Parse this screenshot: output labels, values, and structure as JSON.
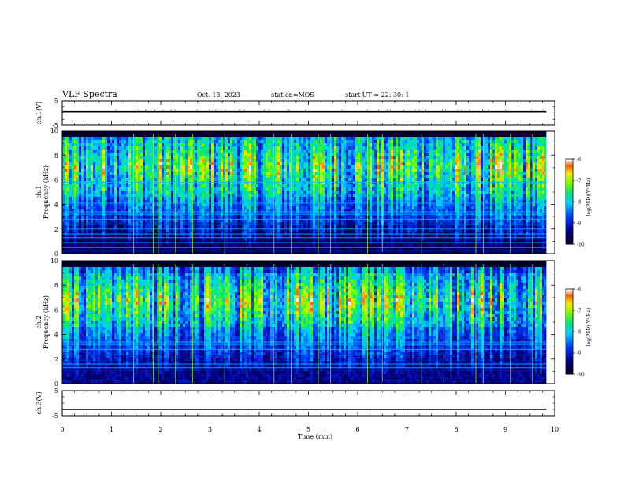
{
  "header": {
    "title": "VLF Spectra",
    "date": "Oct. 13, 2023",
    "station": "station=MOS",
    "start": "start  UT =   22: 30: 1"
  },
  "chart_data": [
    {
      "type": "line",
      "ylabel": "ch.1(V)",
      "ylim": [
        -5,
        5
      ],
      "yticks": [
        -5,
        5
      ],
      "xlim": [
        0,
        10
      ],
      "series": [
        {
          "x": [
            0,
            9.83
          ],
          "values": [
            0.6,
            0.6
          ]
        }
      ]
    },
    {
      "type": "heatmap",
      "ylabel": "ch.1\nFrequency (kHz)",
      "ylim": [
        0,
        10
      ],
      "yticks": [
        0,
        2,
        4,
        6,
        8,
        10
      ],
      "xlim": [
        0,
        10
      ],
      "data_end_min": 9.83,
      "colorbar": {
        "label": "log(PSD)(V²/Hz)",
        "range": [
          -10,
          -6
        ],
        "ticks": [
          -6,
          -7,
          -8,
          -9,
          -10
        ]
      },
      "main_band_khz": [
        4.5,
        9.5
      ],
      "background_level": -9.6,
      "line_freqs_khz": [
        0.5,
        0.9,
        1.3,
        1.6,
        2.0,
        2.4,
        2.8,
        3.2,
        3.4,
        4.1,
        5.8
      ]
    },
    {
      "type": "heatmap",
      "ylabel": "ch.2\nFrequency (kHz)",
      "ylim": [
        0,
        10
      ],
      "yticks": [
        0,
        2,
        4,
        6,
        8,
        10
      ],
      "xlim": [
        0,
        10
      ],
      "data_end_min": 9.83,
      "colorbar": {
        "label": "log(PSD)(V²/Hz)",
        "range": [
          -10,
          -6
        ],
        "ticks": [
          -6,
          -7,
          -8,
          -9,
          -10
        ]
      },
      "main_band_khz": [
        4.5,
        9.0
      ],
      "background_level": -9.4,
      "line_freqs_khz": [
        1.3,
        1.6,
        2.4,
        2.8,
        3.2,
        3.4
      ]
    },
    {
      "type": "line",
      "ylabel": "ch.3(V)",
      "ylim": [
        -5,
        5
      ],
      "yticks": [
        -5,
        5
      ],
      "xlim": [
        0,
        10
      ],
      "xlabel": "Time  (min)",
      "xticks": [
        0,
        1,
        2,
        3,
        4,
        5,
        6,
        7,
        8,
        9,
        10
      ],
      "series": [
        {
          "x": [
            0,
            9.83
          ],
          "values": [
            -2.5,
            -2.5
          ]
        }
      ]
    }
  ]
}
